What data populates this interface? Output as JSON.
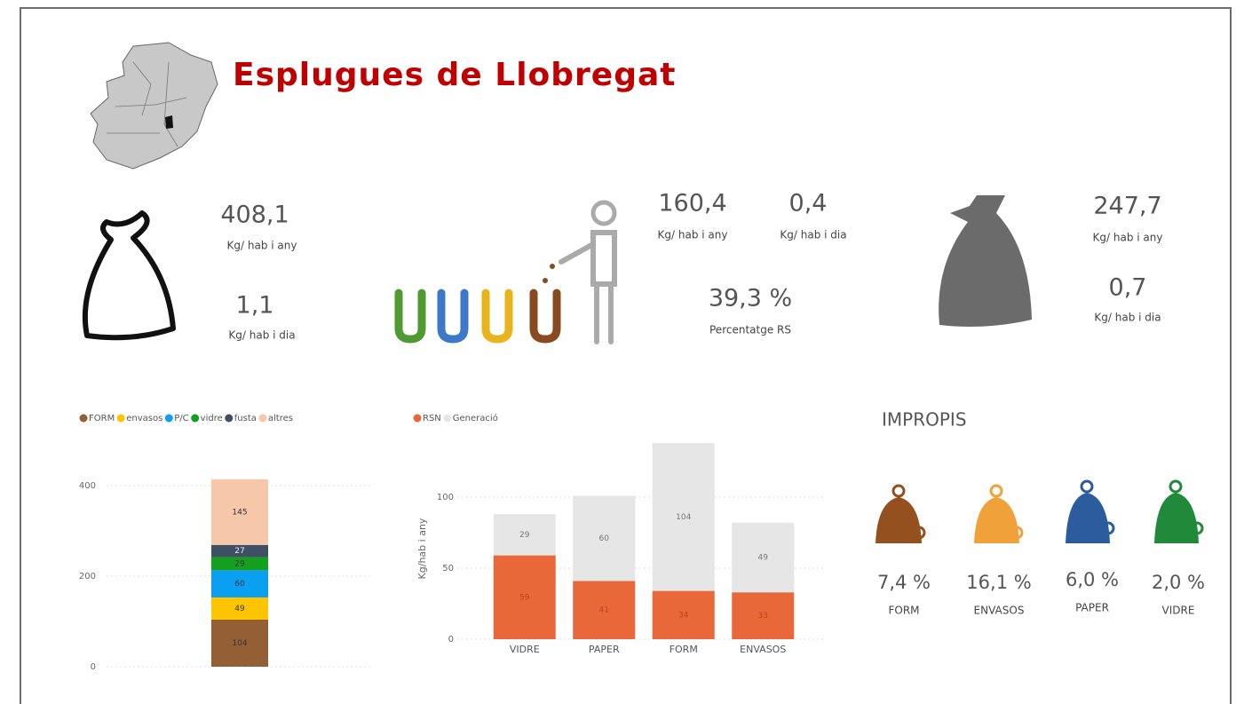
{
  "header": {
    "title": "Esplugues de Llobregat"
  },
  "summary": {
    "total": {
      "per_year": "408,1",
      "per_year_unit": "Kg/ hab i any",
      "per_day": "1,1",
      "per_day_unit": "Kg/ hab i dia"
    },
    "selective": {
      "per_year": "160,4",
      "per_year_unit": "Kg/ hab i any",
      "per_day": "0,4",
      "per_day_unit": "Kg/ hab i dia",
      "percent": "39,3 %",
      "percent_label": "Percentatge RS"
    },
    "residual": {
      "per_year": "247,7",
      "per_year_unit": "Kg/ hab i any",
      "per_day": "0,7",
      "per_day_unit": "Kg/ hab i dia"
    }
  },
  "impropis": {
    "title": "IMPROPIS",
    "items": [
      {
        "value": "7,4 %",
        "label": "FORM"
      },
      {
        "value": "16,1 %",
        "label": "ENVASOS"
      },
      {
        "value": "6,0 %",
        "label": "PAPER"
      },
      {
        "value": "2,0 %",
        "label": "VIDRE"
      }
    ]
  },
  "chart_data": [
    {
      "type": "stacked_bar",
      "categories": [
        null
      ],
      "series": [
        {
          "name": "FORM",
          "color": "#955F36",
          "values": [
            104
          ]
        },
        {
          "name": "envasos",
          "color": "#FFC400",
          "values": [
            49
          ]
        },
        {
          "name": "P/C",
          "color": "#0A9FF0",
          "values": [
            60
          ]
        },
        {
          "name": "vidre",
          "color": "#14A01E",
          "values": [
            29
          ]
        },
        {
          "name": "fusta",
          "color": "#3F5065",
          "values": [
            27
          ]
        },
        {
          "name": "altres",
          "color": "#F7C7A9",
          "values": [
            145
          ]
        }
      ],
      "ylim": [
        0,
        450
      ],
      "yticks": [
        0,
        200,
        400
      ],
      "grid": true
    },
    {
      "type": "stacked_bar",
      "ylabel": "Kg/hab i any",
      "categories": [
        "VIDRE",
        "PAPER",
        "FORM",
        "ENVASOS"
      ],
      "series": [
        {
          "name": "RSN",
          "color": "#E8683A",
          "values": [
            59,
            41,
            34,
            33
          ]
        },
        {
          "name": "Generació",
          "color": "#E6E6E6",
          "values": [
            29,
            60,
            104,
            49
          ]
        }
      ],
      "ylim": [
        0,
        140
      ],
      "yticks": [
        0,
        50,
        100
      ],
      "grid": true
    }
  ]
}
